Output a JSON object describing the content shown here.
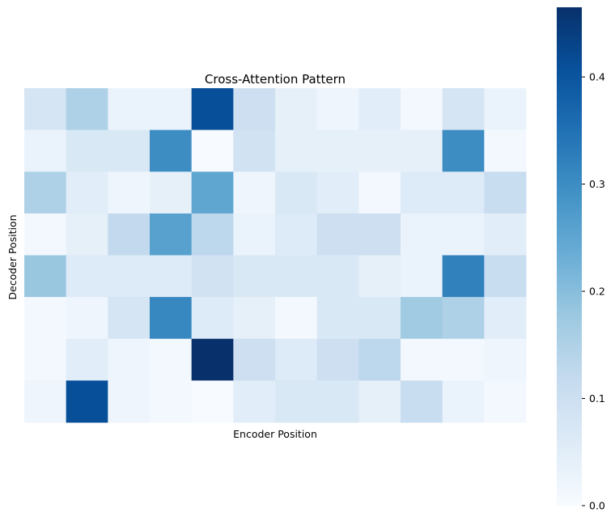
{
  "chart_data": {
    "type": "heatmap",
    "title": "Cross-Attention Pattern",
    "xlabel": "Encoder Position",
    "ylabel": "Decoder Position",
    "rows": 8,
    "cols": 12,
    "colormap": "Blues",
    "vmin": 0.0,
    "vmax": 0.465,
    "values": [
      [
        0.08,
        0.15,
        0.03,
        0.03,
        0.41,
        0.1,
        0.04,
        0.02,
        0.05,
        0.01,
        0.08,
        0.03
      ],
      [
        0.03,
        0.07,
        0.07,
        0.3,
        0.0,
        0.09,
        0.04,
        0.04,
        0.04,
        0.04,
        0.3,
        0.01
      ],
      [
        0.15,
        0.05,
        0.02,
        0.04,
        0.25,
        0.02,
        0.07,
        0.05,
        0.01,
        0.06,
        0.06,
        0.11
      ],
      [
        0.01,
        0.04,
        0.12,
        0.26,
        0.13,
        0.03,
        0.06,
        0.1,
        0.1,
        0.03,
        0.03,
        0.05
      ],
      [
        0.18,
        0.06,
        0.06,
        0.06,
        0.09,
        0.07,
        0.07,
        0.07,
        0.04,
        0.03,
        0.32,
        0.11
      ],
      [
        0.01,
        0.02,
        0.08,
        0.31,
        0.06,
        0.04,
        0.01,
        0.07,
        0.07,
        0.17,
        0.15,
        0.05
      ],
      [
        0.01,
        0.05,
        0.02,
        0.01,
        0.465,
        0.1,
        0.06,
        0.1,
        0.13,
        0.01,
        0.01,
        0.02
      ],
      [
        0.02,
        0.41,
        0.02,
        0.01,
        0.0,
        0.05,
        0.07,
        0.07,
        0.04,
        0.11,
        0.03,
        0.01
      ]
    ],
    "colorbar": {
      "ticks": [
        0.0,
        0.1,
        0.2,
        0.3,
        0.4
      ],
      "tick_labels": [
        "0.0",
        "0.1",
        "0.2",
        "0.3",
        "0.4"
      ]
    }
  }
}
